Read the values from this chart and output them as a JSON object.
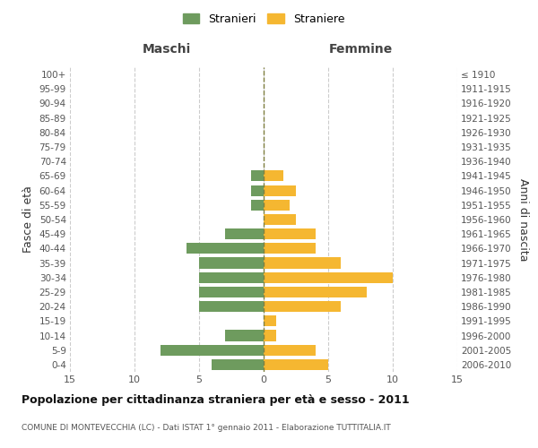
{
  "age_groups": [
    "0-4",
    "5-9",
    "10-14",
    "15-19",
    "20-24",
    "25-29",
    "30-34",
    "35-39",
    "40-44",
    "45-49",
    "50-54",
    "55-59",
    "60-64",
    "65-69",
    "70-74",
    "75-79",
    "80-84",
    "85-89",
    "90-94",
    "95-99",
    "100+"
  ],
  "birth_years": [
    "2006-2010",
    "2001-2005",
    "1996-2000",
    "1991-1995",
    "1986-1990",
    "1981-1985",
    "1976-1980",
    "1971-1975",
    "1966-1970",
    "1961-1965",
    "1956-1960",
    "1951-1955",
    "1946-1950",
    "1941-1945",
    "1936-1940",
    "1931-1935",
    "1926-1930",
    "1921-1925",
    "1916-1920",
    "1911-1915",
    "≤ 1910"
  ],
  "maschi": [
    4,
    8,
    3,
    0,
    5,
    5,
    5,
    5,
    6,
    3,
    0,
    1,
    1,
    1,
    0,
    0,
    0,
    0,
    0,
    0,
    0
  ],
  "femmine": [
    5,
    4,
    1,
    1,
    6,
    8,
    10,
    6,
    4,
    4,
    2.5,
    2,
    2.5,
    1.5,
    0,
    0,
    0,
    0,
    0,
    0,
    0
  ],
  "male_color": "#6e9b5e",
  "female_color": "#f5b731",
  "center_line_color": "#808040",
  "xlim": 15,
  "title": "Popolazione per cittadinanza straniera per età e sesso - 2011",
  "subtitle": "COMUNE DI MONTEVECCHIA (LC) - Dati ISTAT 1° gennaio 2011 - Elaborazione TUTTITALIA.IT",
  "ylabel_left": "Fasce di età",
  "ylabel_right": "Anni di nascita",
  "maschi_label": "Maschi",
  "femmine_label": "Femmine",
  "legend_stranieri": "Stranieri",
  "legend_straniere": "Straniere",
  "background_color": "#ffffff",
  "grid_color": "#cccccc"
}
